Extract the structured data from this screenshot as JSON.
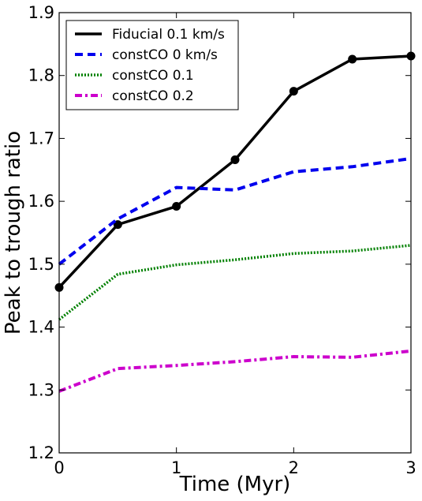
{
  "chart_data": {
    "type": "line",
    "xlabel": "Time (Myr)",
    "ylabel": "Peak to trough ratio",
    "xlim": [
      0,
      3
    ],
    "ylim": [
      1.2,
      1.9
    ],
    "xticks": [
      0,
      1,
      2,
      3
    ],
    "yticks": [
      1.2,
      1.3,
      1.4,
      1.5,
      1.6,
      1.7,
      1.8,
      1.9
    ],
    "xtick_labels": [
      "0",
      "1",
      "2",
      "3"
    ],
    "ytick_labels": [
      "1.2",
      "1.3",
      "1.4",
      "1.5",
      "1.6",
      "1.7",
      "1.8",
      "1.9"
    ],
    "grid": false,
    "legend_position": "top-left",
    "series": [
      {
        "name": "Fiducial 0.1 km/s",
        "color": "#000000",
        "style": "solid",
        "markers": true,
        "x": [
          0,
          0.5,
          1,
          1.5,
          2,
          2.5,
          3
        ],
        "y": [
          1.463,
          1.563,
          1.592,
          1.666,
          1.775,
          1.826,
          1.831
        ]
      },
      {
        "name": "constCO 0 km/s",
        "color": "#0000ee",
        "style": "dashed",
        "markers": false,
        "x": [
          0,
          0.5,
          1,
          1.5,
          2,
          2.5,
          3
        ],
        "y": [
          1.5,
          1.572,
          1.622,
          1.618,
          1.647,
          1.655,
          1.668
        ]
      },
      {
        "name": "constCO 0.1",
        "color": "#008000",
        "style": "dotted",
        "markers": false,
        "x": [
          0,
          0.5,
          1,
          1.5,
          2,
          2.5,
          3
        ],
        "y": [
          1.412,
          1.484,
          1.499,
          1.507,
          1.517,
          1.521,
          1.53
        ]
      },
      {
        "name": "constCO 0.2",
        "color": "#cc00cc",
        "style": "dashdot",
        "markers": false,
        "x": [
          0,
          0.5,
          1,
          1.5,
          2,
          2.5,
          3
        ],
        "y": [
          1.298,
          1.334,
          1.339,
          1.345,
          1.353,
          1.352,
          1.362
        ]
      }
    ]
  }
}
